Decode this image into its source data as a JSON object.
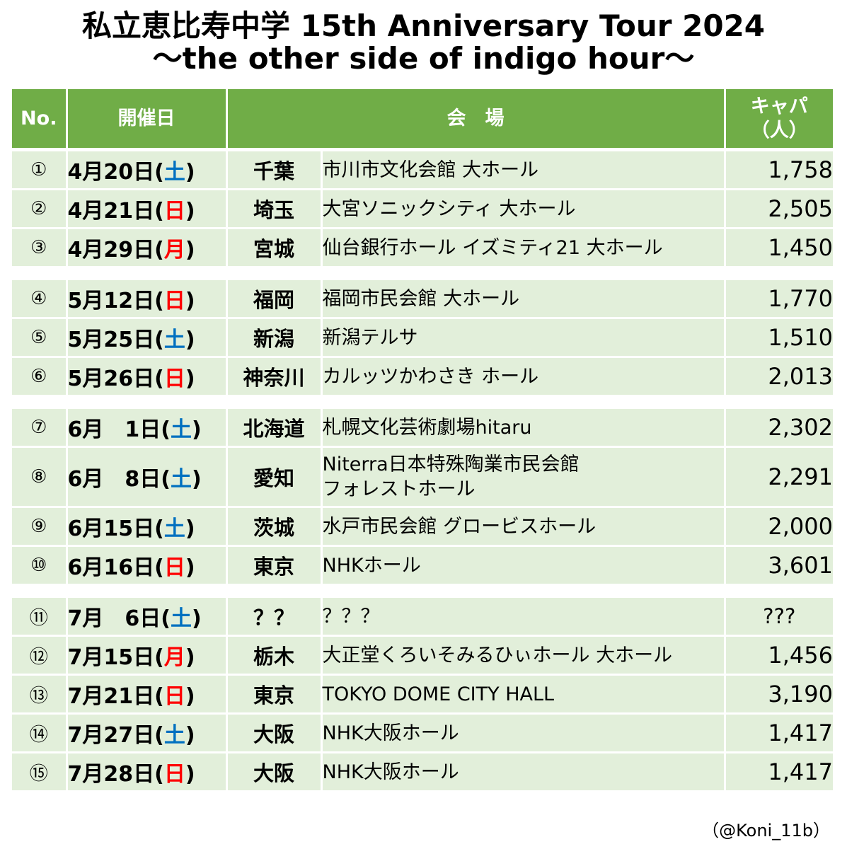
{
  "title": {
    "line1": "私立恵比寿中学 15th Anniversary Tour 2024",
    "line2": "〜the other side of indigo hour〜"
  },
  "headers": {
    "no": "No.",
    "date": "開催日",
    "venue": "会　場",
    "cap_line1": "キャパ",
    "cap_line2": "（人）"
  },
  "colors": {
    "header_bg": "#70ad47",
    "row_bg": "#e2efda",
    "saturday": "#0070c0",
    "sunday_holiday": "#ff0000"
  },
  "rows": [
    {
      "no": "①",
      "date_prefix": "4月20日(",
      "dow": "土",
      "date_suffix": ")",
      "dow_type": "sat",
      "pref": "千葉",
      "venue": "市川市文化会館 大ホール",
      "capacity": "1,758"
    },
    {
      "no": "②",
      "date_prefix": "4月21日(",
      "dow": "日",
      "date_suffix": ")",
      "dow_type": "sun",
      "pref": "埼玉",
      "venue": "大宮ソニックシティ 大ホール",
      "capacity": "2,505"
    },
    {
      "no": "③",
      "date_prefix": "4月29日(",
      "dow": "月",
      "date_suffix": ")",
      "dow_type": "mon",
      "pref": "宮城",
      "venue": "仙台銀行ホール イズミティ21 大ホール",
      "capacity": "1,450"
    },
    {
      "no": "④",
      "date_prefix": "5月12日(",
      "dow": "日",
      "date_suffix": ")",
      "dow_type": "sun",
      "pref": "福岡",
      "venue": "福岡市民会館 大ホール",
      "capacity": "1,770"
    },
    {
      "no": "⑤",
      "date_prefix": "5月25日(",
      "dow": "土",
      "date_suffix": ")",
      "dow_type": "sat",
      "pref": "新潟",
      "venue": "新潟テルサ",
      "capacity": "1,510"
    },
    {
      "no": "⑥",
      "date_prefix": "5月26日(",
      "dow": "日",
      "date_suffix": ")",
      "dow_type": "sun",
      "pref": "神奈川",
      "venue": "カルッツかわさき ホール",
      "capacity": "2,013"
    },
    {
      "no": "⑦",
      "date_prefix": "6月　1日(",
      "dow": "土",
      "date_suffix": ")",
      "dow_type": "sat",
      "pref": "北海道",
      "venue": "札幌文化芸術劇場hitaru",
      "capacity": "2,302"
    },
    {
      "no": "⑧",
      "date_prefix": "6月　8日(",
      "dow": "土",
      "date_suffix": ")",
      "dow_type": "sat",
      "pref": "愛知",
      "venue": "Niterra日本特殊陶業市民会館",
      "venue_line2": "フォレストホール",
      "capacity": "2,291"
    },
    {
      "no": "⑨",
      "date_prefix": "6月15日(",
      "dow": "土",
      "date_suffix": ")",
      "dow_type": "sat",
      "pref": "茨城",
      "venue": "水戸市民会館 グロービスホール",
      "capacity": "2,000"
    },
    {
      "no": "⑩",
      "date_prefix": "6月16日(",
      "dow": "日",
      "date_suffix": ")",
      "dow_type": "sun",
      "pref": "東京",
      "venue": "NHKホール",
      "capacity": "3,601"
    },
    {
      "no": "⑪",
      "date_prefix": "7月　6日(",
      "dow": "土",
      "date_suffix": ")",
      "dow_type": "sat",
      "pref": "？？",
      "venue": "？？？",
      "capacity": "???"
    },
    {
      "no": "⑫",
      "date_prefix": "7月15日(",
      "dow": "月",
      "date_suffix": ")",
      "dow_type": "mon",
      "pref": "栃木",
      "venue": "大正堂くろいそみるひぃホール 大ホール",
      "capacity": "1,456"
    },
    {
      "no": "⑬",
      "date_prefix": "7月21日(",
      "dow": "日",
      "date_suffix": ")",
      "dow_type": "sun",
      "pref": "東京",
      "venue": "TOKYO DOME CITY HALL",
      "capacity": "3,190"
    },
    {
      "no": "⑭",
      "date_prefix": "7月27日(",
      "dow": "土",
      "date_suffix": ")",
      "dow_type": "sat",
      "pref": "大阪",
      "venue": "NHK大阪ホール",
      "capacity": "1,417"
    },
    {
      "no": "⑮",
      "date_prefix": "7月28日(",
      "dow": "日",
      "date_suffix": ")",
      "dow_type": "sun",
      "pref": "大阪",
      "venue": "NHK大阪ホール",
      "capacity": "1,417"
    }
  ],
  "credit": "（@Koni_11b）"
}
